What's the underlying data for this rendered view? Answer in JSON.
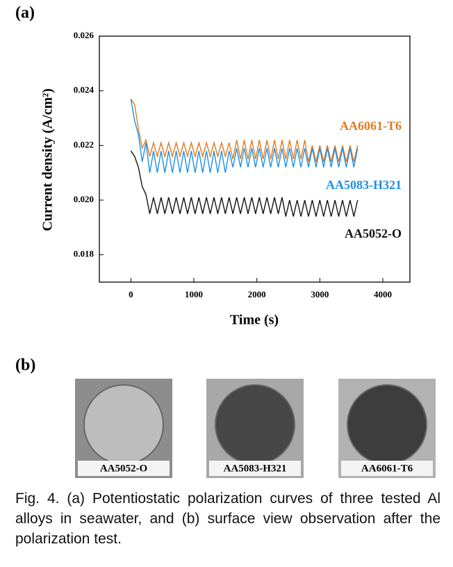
{
  "chart_data": {
    "type": "line",
    "panel_label": "(a)",
    "x_label": "Time (s)",
    "y_label": "Current density (A/cm²)",
    "xlim": [
      -500,
      4430
    ],
    "ylim": [
      0.017,
      0.026
    ],
    "xticks": [
      0,
      1000,
      2000,
      3000,
      4000
    ],
    "yticks": [
      0.018,
      {
        "value": 0.02,
        "label": "0.020"
      },
      0.022,
      0.024,
      0.026
    ],
    "x": [
      0,
      60,
      120,
      180,
      240,
      300,
      360,
      420,
      480,
      540,
      600,
      660,
      720,
      780,
      840,
      900,
      960,
      1020,
      1080,
      1140,
      1200,
      1260,
      1320,
      1380,
      1440,
      1500,
      1560,
      1620,
      1680,
      1740,
      1800,
      1860,
      1920,
      1980,
      2040,
      2100,
      2160,
      2220,
      2280,
      2340,
      2400,
      2460,
      2520,
      2580,
      2640,
      2700,
      2760,
      2820,
      2880,
      2940,
      3000,
      3060,
      3120,
      3180,
      3240,
      3300,
      3360,
      3420,
      3480,
      3540,
      3600
    ],
    "series": [
      {
        "name": "AA6061-T6",
        "color": "#e07b20",
        "values": [
          0.0237,
          0.0235,
          0.0226,
          0.0219,
          0.0222,
          0.0216,
          0.0221,
          0.0216,
          0.0221,
          0.0216,
          0.0221,
          0.0216,
          0.0221,
          0.0216,
          0.0221,
          0.0216,
          0.0221,
          0.0216,
          0.0221,
          0.0216,
          0.0221,
          0.0216,
          0.0221,
          0.0216,
          0.0221,
          0.0216,
          0.0221,
          0.0215,
          0.0222,
          0.0215,
          0.0222,
          0.0215,
          0.0222,
          0.0215,
          0.0222,
          0.0215,
          0.0222,
          0.0215,
          0.0222,
          0.0215,
          0.0222,
          0.0215,
          0.0222,
          0.0215,
          0.0222,
          0.0215,
          0.0222,
          0.0214,
          0.022,
          0.0214,
          0.022,
          0.0214,
          0.022,
          0.0214,
          0.022,
          0.0214,
          0.022,
          0.0214,
          0.022,
          0.0214,
          0.022
        ]
      },
      {
        "name": "AA5083-H321",
        "color": "#1e8fe8",
        "values": [
          0.0237,
          0.0229,
          0.0224,
          0.0214,
          0.0221,
          0.021,
          0.0218,
          0.021,
          0.0218,
          0.021,
          0.0218,
          0.021,
          0.0218,
          0.021,
          0.0218,
          0.021,
          0.0218,
          0.021,
          0.0218,
          0.021,
          0.0218,
          0.021,
          0.0218,
          0.021,
          0.0218,
          0.021,
          0.0218,
          0.0212,
          0.0219,
          0.0212,
          0.0219,
          0.0212,
          0.0219,
          0.0212,
          0.0219,
          0.0212,
          0.0219,
          0.0212,
          0.0219,
          0.0212,
          0.0219,
          0.0212,
          0.0219,
          0.0212,
          0.0219,
          0.0212,
          0.0219,
          0.0212,
          0.0219,
          0.0212,
          0.0219,
          0.0212,
          0.0219,
          0.0212,
          0.0219,
          0.0212,
          0.0219,
          0.0212,
          0.0219,
          0.0212,
          0.0219
        ]
      },
      {
        "name": "AA5052-O",
        "color": "#111111",
        "values": [
          0.0218,
          0.0216,
          0.0212,
          0.0205,
          0.0202,
          0.0195,
          0.0201,
          0.0195,
          0.0201,
          0.0195,
          0.0201,
          0.0195,
          0.0201,
          0.0195,
          0.0201,
          0.0195,
          0.0201,
          0.0195,
          0.0201,
          0.0195,
          0.0201,
          0.0195,
          0.0201,
          0.0195,
          0.0201,
          0.0195,
          0.0201,
          0.0195,
          0.0201,
          0.0195,
          0.0201,
          0.0195,
          0.0201,
          0.0195,
          0.0201,
          0.0195,
          0.0201,
          0.0195,
          0.0201,
          0.0195,
          0.0201,
          0.0194,
          0.02,
          0.0194,
          0.02,
          0.0194,
          0.02,
          0.0194,
          0.02,
          0.0194,
          0.02,
          0.0194,
          0.02,
          0.0194,
          0.02,
          0.0194,
          0.02,
          0.0194,
          0.02,
          0.0194,
          0.02
        ]
      }
    ]
  },
  "panel_b": {
    "label": "(b)",
    "photos": [
      {
        "label": "AA5052-O"
      },
      {
        "label": "AA5083-H321"
      },
      {
        "label": "AA6061-T6"
      }
    ]
  },
  "caption": "Fig. 4. (a) Potentiostatic polarization curves of three tested Al alloys in seawater, and (b) surface view observation after the polarization test."
}
